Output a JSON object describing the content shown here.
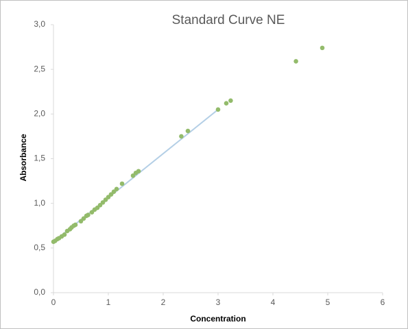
{
  "chart_data": {
    "type": "scatter",
    "title": "Standard Curve NE",
    "x_label": "Concentration",
    "y_label": "Absorbance",
    "xlim": [
      0,
      6
    ],
    "xticks": [
      0,
      1,
      2,
      3,
      4,
      5,
      6
    ],
    "ylim": [
      0,
      3
    ],
    "yticks": [
      {
        "value": 0,
        "label": "0,0"
      },
      {
        "value": 0.5,
        "label": "0,5"
      },
      {
        "value": 1,
        "label": "1,0"
      },
      {
        "value": 1.5,
        "label": "1,5"
      },
      {
        "value": 2,
        "label": "2,0"
      },
      {
        "value": 2.5,
        "label": "2,5"
      },
      {
        "value": 3,
        "label": "3,0"
      }
    ],
    "grid": false,
    "color": "#93bb6b",
    "x": [
      0,
      0.03,
      0.07,
      0.1,
      0.15,
      0.2,
      0.25,
      0.3,
      0.33,
      0.37,
      0.4,
      0.5,
      0.55,
      0.6,
      0.63,
      0.7,
      0.75,
      0.8,
      0.85,
      0.9,
      0.95,
      1.0,
      1.05,
      1.1,
      1.15,
      1.25,
      1.45,
      1.5,
      1.55,
      2.33,
      2.45,
      3.0,
      3.15,
      3.23,
      4.42,
      4.9
    ],
    "values": [
      0.57,
      0.58,
      0.6,
      0.61,
      0.63,
      0.65,
      0.69,
      0.71,
      0.73,
      0.75,
      0.76,
      0.8,
      0.83,
      0.86,
      0.87,
      0.9,
      0.93,
      0.95,
      0.98,
      1.01,
      1.04,
      1.07,
      1.1,
      1.13,
      1.16,
      1.22,
      1.31,
      1.34,
      1.36,
      1.75,
      1.81,
      2.05,
      2.12,
      2.15,
      2.59,
      2.74
    ],
    "trendline": {
      "x": [
        0,
        3
      ],
      "values": [
        0.57,
        2.05
      ],
      "color": "#b4cfe6"
    }
  }
}
